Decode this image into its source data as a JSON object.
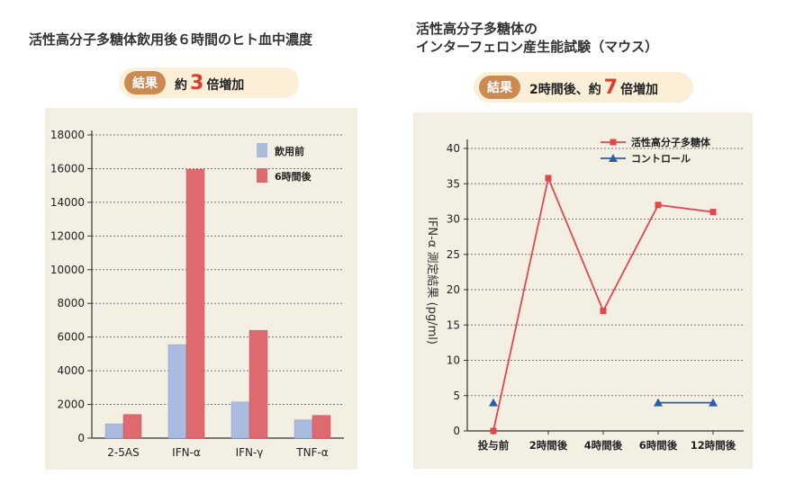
{
  "left": {
    "title": "活性高分子多糖体飲用後６時間のヒト血中濃度",
    "result_badge": "結果",
    "result_prefix": "約",
    "result_number": "3",
    "result_suffix": "倍増加"
  },
  "right": {
    "title_line1": "活性高分子多糖体の",
    "title_line2": "インターフェロン産生能試験（マウス）",
    "result_badge": "結果",
    "result_prefix": "2時間後、約",
    "result_number": "7",
    "result_suffix": "倍増加"
  },
  "colors": {
    "red": "#e0484c",
    "blue": "#2b5fa8",
    "bar_blue": "#a9bce0",
    "bar_red": "#de6a70",
    "accent": "#e23b2e"
  },
  "chart_data": [
    {
      "type": "bar",
      "categories": [
        "2-5AS",
        "IFN-α",
        "IFN-γ",
        "TNF-α"
      ],
      "series": [
        {
          "name": "飲用前",
          "values": [
            850,
            5550,
            2150,
            1080
          ]
        },
        {
          "name": "6時間後",
          "values": [
            1400,
            15950,
            6400,
            1350
          ]
        }
      ],
      "yticks": [
        0,
        2000,
        4000,
        6000,
        8000,
        10000,
        12000,
        14000,
        16000,
        18000
      ],
      "ylim": [
        0,
        18000
      ],
      "legend": "top-right",
      "grid": true
    },
    {
      "type": "line",
      "categories": [
        "投与前",
        "2時間後",
        "4時間後",
        "6時間後",
        "12時間後"
      ],
      "series": [
        {
          "name": "活性高分子多糖体",
          "values": [
            0,
            35.8,
            17,
            32,
            31
          ]
        },
        {
          "name": "コントロール",
          "values": [
            4,
            null,
            null,
            4,
            4
          ]
        }
      ],
      "ylabel": "IFN-α 測定結果 (pg/ml)",
      "yticks": [
        0,
        5,
        10,
        15,
        20,
        25,
        30,
        35,
        40
      ],
      "ylim": [
        0,
        40
      ],
      "legend": "top-right",
      "grid": true
    }
  ]
}
